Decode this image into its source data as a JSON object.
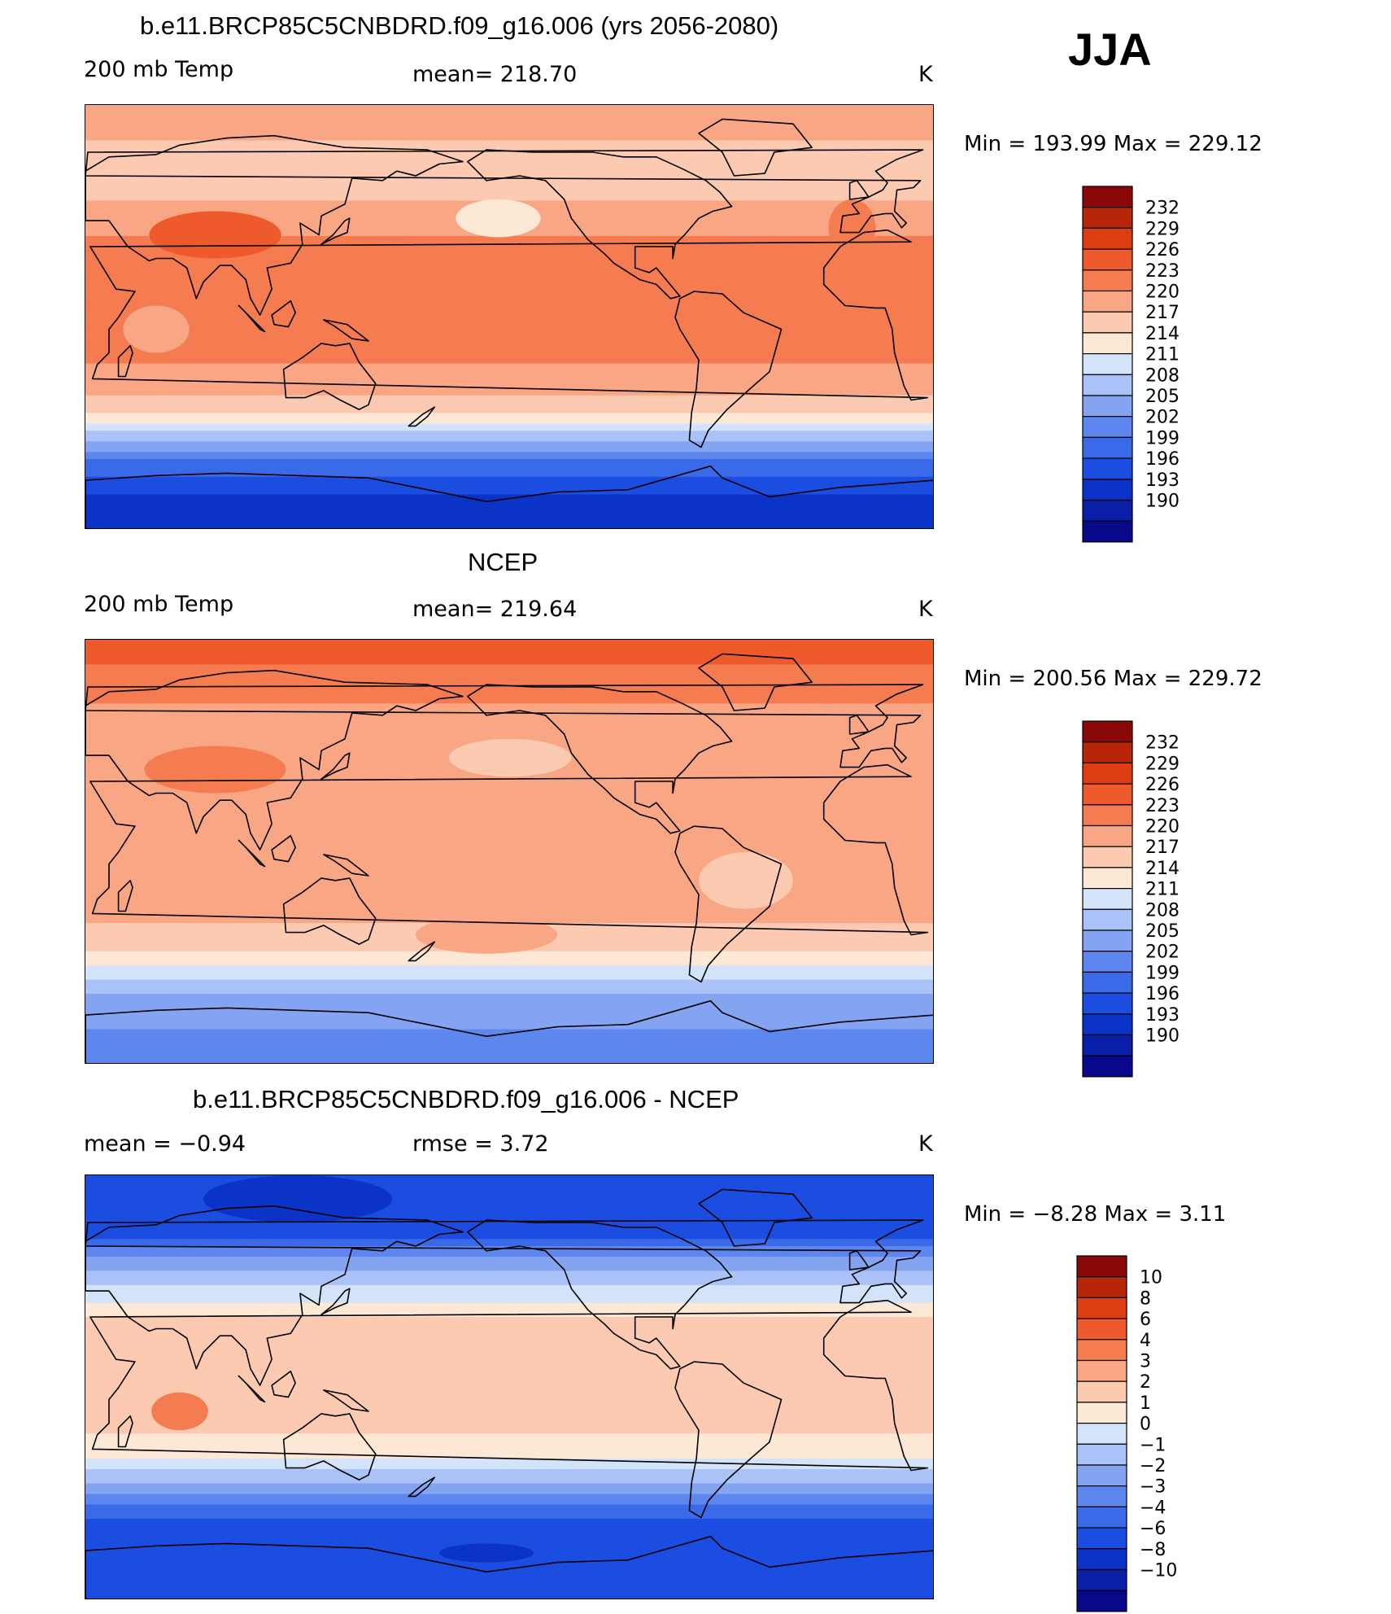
{
  "season": "JJA",
  "colors": {
    "temp": [
      "#08088a",
      "#0a1fa8",
      "#0b33c8",
      "#1a4de0",
      "#3a6ae8",
      "#5d87ee",
      "#84a4f2",
      "#aac2f7",
      "#d2e3fa",
      "#fde8d6",
      "#fccab0",
      "#f9a684",
      "#f57b51",
      "#ee5a2c",
      "#dd3d10",
      "#b8260a",
      "#8a0808"
    ],
    "diff": [
      "#08088a",
      "#0a1fa8",
      "#0b33c8",
      "#1a4de0",
      "#3a6ae8",
      "#5d87ee",
      "#84a4f2",
      "#aac2f7",
      "#d2e3fa",
      "#fde8d6",
      "#fccab0",
      "#f9a684",
      "#f57b51",
      "#ee5a2c",
      "#dd3d10",
      "#b8260a",
      "#8a0808"
    ],
    "land": "#000000"
  },
  "panels": [
    {
      "title": "b.e11.BRCP85C5CNBDRD.f09_g16.006 (yrs 2056-2080)",
      "left": "200 mb Temp",
      "center": "mean=  218.70",
      "units": "K",
      "stats": "Min  =  193.99  Max  =  229.12"
    },
    {
      "title": "NCEP",
      "left": "200 mb Temp",
      "center": "mean=  219.64",
      "units": "K",
      "stats": "Min  =  200.56  Max  =  229.72"
    },
    {
      "title": "b.e11.BRCP85C5CNBDRD.f09_g16.006 - NCEP",
      "left": "mean  =    −0.94",
      "center": "rmse  =     3.72",
      "units": "K",
      "stats": "Min  =    −8.28  Max  =     3.11"
    }
  ],
  "chart_data": [
    {
      "type": "heatmap",
      "title": "b.e11.BRCP85C5CNBDRD.f09_g16.006 (yrs 2056-2080)",
      "variable": "200 mb Temp",
      "units": "K",
      "mean": 218.7,
      "min": 193.99,
      "max": 229.12,
      "levels": [
        190,
        193,
        196,
        199,
        202,
        205,
        208,
        211,
        214,
        217,
        220,
        223,
        226,
        229,
        232
      ],
      "zonal_profile": {
        "lat": [
          90,
          80,
          70,
          60,
          50,
          40,
          30,
          20,
          10,
          0,
          -10,
          -20,
          -30,
          -40,
          -50,
          -60,
          -70,
          -80,
          -90
        ],
        "value": [
          220,
          221,
          219,
          219,
          220,
          222,
          224,
          224,
          224,
          224,
          224,
          223,
          221,
          217,
          210,
          202,
          198,
          194,
          194
        ]
      }
    },
    {
      "type": "heatmap",
      "title": "NCEP",
      "variable": "200 mb Temp",
      "units": "K",
      "mean": 219.64,
      "min": 200.56,
      "max": 229.72,
      "levels": [
        190,
        193,
        196,
        199,
        202,
        205,
        208,
        211,
        214,
        217,
        220,
        223,
        226,
        229,
        232
      ],
      "zonal_profile": {
        "lat": [
          90,
          80,
          70,
          60,
          50,
          40,
          30,
          20,
          10,
          0,
          -10,
          -20,
          -30,
          -40,
          -50,
          -60,
          -70,
          -80,
          -90
        ],
        "value": [
          227,
          226,
          225,
          222,
          221,
          221,
          222,
          221,
          221,
          221,
          221,
          221,
          220,
          218,
          213,
          208,
          206,
          204,
          204
        ]
      }
    },
    {
      "type": "heatmap",
      "title": "b.e11.BRCP85C5CNBDRD.f09_g16.006 - NCEP",
      "variable": "200 mb Temp difference",
      "units": "K",
      "mean": -0.94,
      "rmse": 3.72,
      "min": -8.28,
      "max": 3.11,
      "levels": [
        -10,
        -8,
        -6,
        -4,
        -3,
        -2,
        -1,
        0,
        1,
        2,
        3,
        4,
        6,
        8,
        10
      ],
      "zonal_profile": {
        "lat": [
          90,
          80,
          70,
          60,
          50,
          40,
          30,
          20,
          10,
          0,
          -10,
          -20,
          -30,
          -40,
          -50,
          -60,
          -70,
          -80,
          -90
        ],
        "value": [
          -6,
          -5,
          -6,
          -3,
          -1,
          0.5,
          2,
          2,
          2.5,
          2.5,
          2.5,
          2,
          1,
          -1,
          -3,
          -5,
          -6,
          -6,
          -6
        ]
      }
    }
  ],
  "colorbars": [
    {
      "labels": [
        "232",
        "229",
        "226",
        "223",
        "220",
        "217",
        "214",
        "211",
        "208",
        "205",
        "202",
        "199",
        "196",
        "193",
        "190"
      ]
    },
    {
      "labels": [
        "232",
        "229",
        "226",
        "223",
        "220",
        "217",
        "214",
        "211",
        "208",
        "205",
        "202",
        "199",
        "196",
        "193",
        "190"
      ]
    },
    {
      "labels": [
        "10",
        "8",
        "6",
        "4",
        "3",
        "2",
        "1",
        "0",
        "−1",
        "−2",
        "−3",
        "−4",
        "−6",
        "−8",
        "−10"
      ]
    }
  ]
}
